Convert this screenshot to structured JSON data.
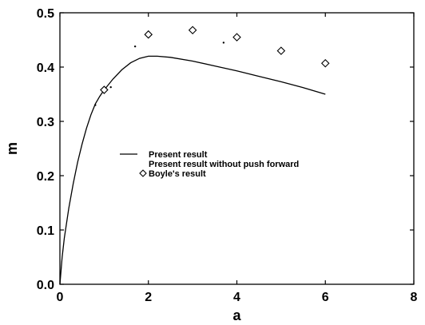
{
  "chart_data": {
    "type": "line",
    "xlabel": "a",
    "ylabel": "m",
    "xlim": [
      0,
      8
    ],
    "ylim": [
      0,
      0.5
    ],
    "xticks": [
      "0",
      "2",
      "4",
      "6",
      "8"
    ],
    "yticks": [
      "0.0",
      "0.1",
      "0.2",
      "0.3",
      "0.4",
      "0.5"
    ],
    "grid": false,
    "legend_position": "middle-left",
    "series": [
      {
        "name": "Present result",
        "style": "solid-line",
        "color": "#000000",
        "x": [
          0.0,
          0.05,
          0.1,
          0.2,
          0.3,
          0.4,
          0.5,
          0.6,
          0.7,
          0.8,
          0.9,
          1.0,
          1.2,
          1.4,
          1.6,
          1.8,
          2.0,
          2.2,
          2.5,
          3.0,
          3.5,
          4.0,
          4.5,
          5.0,
          5.5,
          6.0
        ],
        "y": [
          0.0,
          0.05,
          0.085,
          0.14,
          0.185,
          0.225,
          0.258,
          0.287,
          0.312,
          0.332,
          0.346,
          0.358,
          0.378,
          0.395,
          0.408,
          0.416,
          0.42,
          0.42,
          0.418,
          0.411,
          0.402,
          0.393,
          0.383,
          0.373,
          0.362,
          0.35
        ]
      },
      {
        "name": "Present result without push forward",
        "style": "dots",
        "color": "#000000",
        "x": [
          0.8,
          1.15,
          1.7,
          3.7
        ],
        "y": [
          0.33,
          0.363,
          0.438,
          0.445
        ]
      },
      {
        "name": "Boyle's result",
        "style": "diamond-markers",
        "color": "#000000",
        "x": [
          1,
          2,
          3,
          4,
          5,
          6
        ],
        "y": [
          0.358,
          0.46,
          0.468,
          0.455,
          0.43,
          0.407
        ]
      }
    ]
  }
}
